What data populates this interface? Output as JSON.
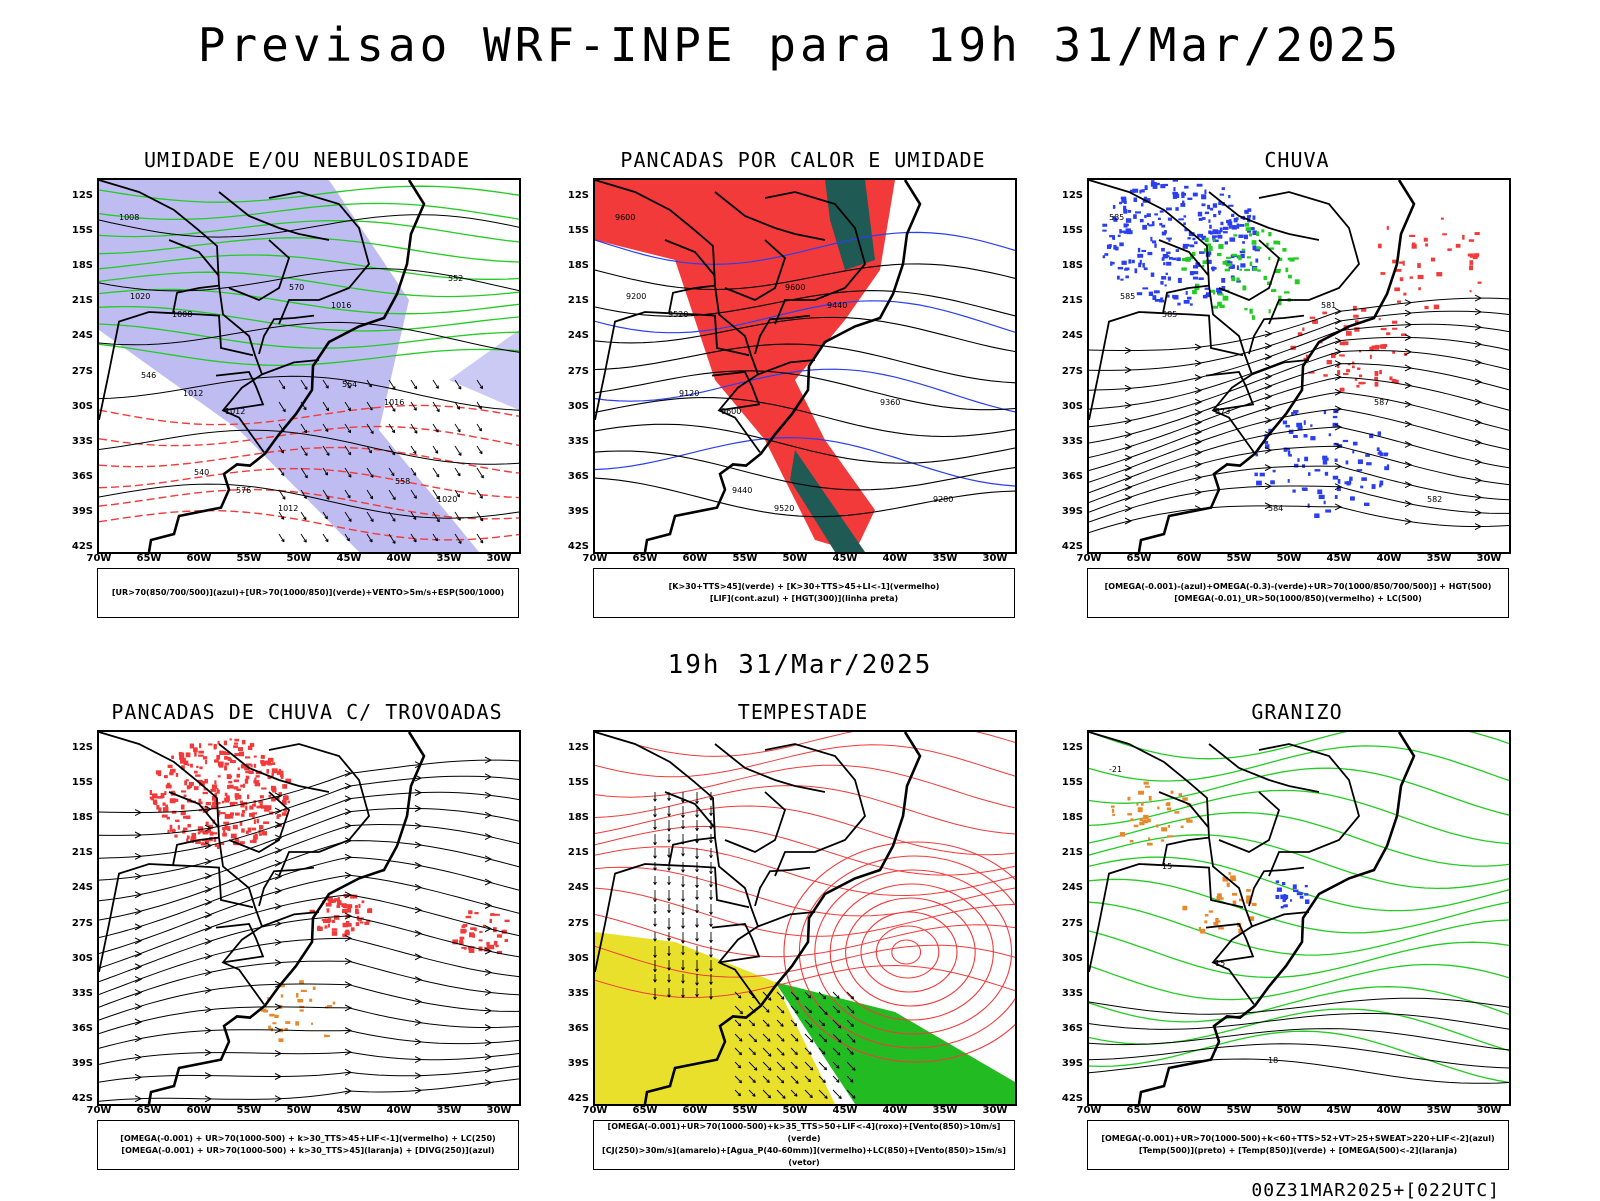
{
  "title": "Previsao WRF-INPE  para 19h 31/Mar/2025",
  "subtitle": "19h 31/Mar/2025",
  "footer": "00Z31MAR2025+[022UTC]",
  "lat_labels": [
    "12S",
    "15S",
    "18S",
    "21S",
    "24S",
    "27S",
    "30S",
    "33S",
    "36S",
    "39S",
    "42S"
  ],
  "lon_labels": [
    "70W",
    "65W",
    "60W",
    "55W",
    "50W",
    "45W",
    "40W",
    "35W",
    "30W"
  ],
  "colors": {
    "green": "#22cc22",
    "blue": "#2a3ff0",
    "red": "#f23a3a",
    "lavender": "#a9a6ee",
    "yellow": "#e8e02a",
    "darkteal": "#1f5a55",
    "orange": "#e8882a",
    "border": "#000000"
  },
  "panels": [
    {
      "id": "umidade",
      "title": "UMIDADE E/OU NEBULOSIDADE",
      "legend": [
        "[UR>70(850/700/500)](azul)+[UR>70(1000/850)](verde)+VENTO>5m/s+ESP(500/1000)"
      ],
      "contour_labels": [
        "1008",
        "1008",
        "1012",
        "1012",
        "1016",
        "1016",
        "1020",
        "1020",
        "1012",
        "576",
        "570",
        "564",
        "558",
        "552",
        "546",
        "540"
      ]
    },
    {
      "id": "calor",
      "title": "PANCADAS POR CALOR E UMIDADE",
      "legend": [
        "[K>30+TTS>45](verde) + [K>30+TTS>45+LI<-1](vermelho)",
        "[LIF](cont.azul) + [HGT(300)](linha preta)"
      ],
      "contour_labels": [
        "9600",
        "9520",
        "9600",
        "9520",
        "9440",
        "9360",
        "9280",
        "9200",
        "9120",
        "9440",
        "9600"
      ]
    },
    {
      "id": "chuva",
      "title": "CHUVA",
      "legend": [
        "[OMEGA(-0.001)-(azul)+OMEGA(-0.3)-(verde)+UR>70(1000/850/700/500)] + HGT(500)",
        "[OMEGA(-0.01)_UR>50(1000/850)(vermelho) + LC(500)"
      ],
      "contour_labels": [
        "585",
        "585",
        "573",
        "584",
        "581",
        "587",
        "582",
        "585"
      ]
    },
    {
      "id": "trovoadas",
      "title": "PANCADAS DE CHUVA C/ TROVOADAS",
      "legend": [
        "[OMEGA(-0.001) + UR>70(1000-500) + k>30_TTS>45+LIF<-1](vermelho) + LC(250)",
        "[OMEGA(-0.001) + UR>70(1000-500) + k>30_TTS>45](laranja) + [DIVG(250)](azul)"
      ],
      "contour_labels": []
    },
    {
      "id": "tempestade",
      "title": "TEMPESTADE",
      "legend": [
        "[OMEGA(-0.001)+UR>70(1000-500)+k>35_TTS>50+LIF<-4](roxo)+[Vento(850)>10m/s](verde)",
        "[CJ(250)>30m/s](amarelo)+[Agua_P(40-60mm)](vermelho)+LC(850)+[Vento(850)>15m/s](vetor)"
      ],
      "contour_labels": []
    },
    {
      "id": "granizo",
      "title": "GRANIZO",
      "legend": [
        "[OMEGA(-0.001)+UR>70(1000-500)+k<60+TTS>52+VT>25+SWEAT>220+LIF<-2](azul)",
        "[Temp(500)](preto) + [Temp(850)](verde) + [OMEGA(500)<-2](laranja)"
      ],
      "contour_labels": [
        "-21",
        "15",
        "15",
        "18"
      ]
    }
  ]
}
